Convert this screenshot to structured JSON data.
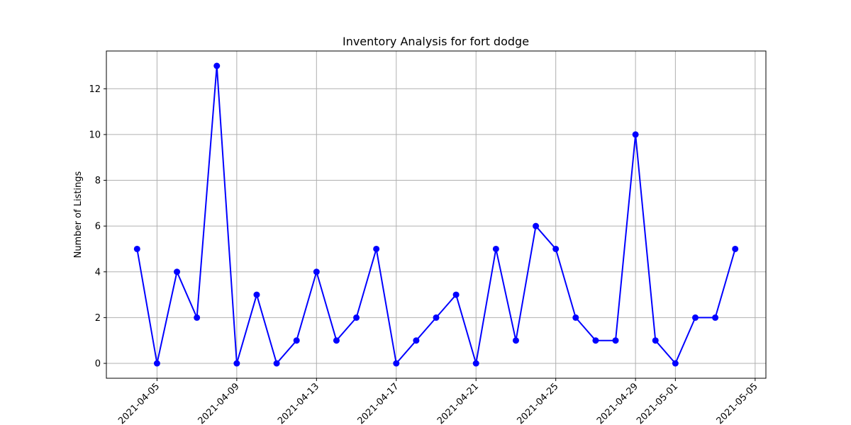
{
  "chart_data": {
    "type": "line",
    "title": "Inventory Analysis for fort dodge",
    "xlabel": "",
    "ylabel": "Number of Listings",
    "x": [
      "2021-04-04",
      "2021-04-05",
      "2021-04-06",
      "2021-04-07",
      "2021-04-08",
      "2021-04-09",
      "2021-04-10",
      "2021-04-11",
      "2021-04-12",
      "2021-04-13",
      "2021-04-14",
      "2021-04-15",
      "2021-04-16",
      "2021-04-17",
      "2021-04-18",
      "2021-04-19",
      "2021-04-20",
      "2021-04-21",
      "2021-04-22",
      "2021-04-23",
      "2021-04-24",
      "2021-04-25",
      "2021-04-26",
      "2021-04-27",
      "2021-04-28",
      "2021-04-29",
      "2021-04-30",
      "2021-05-01",
      "2021-05-02",
      "2021-05-03",
      "2021-05-04"
    ],
    "series": [
      {
        "values": [
          5,
          0,
          4,
          2,
          13,
          0,
          3,
          0,
          1,
          4,
          1,
          2,
          5,
          0,
          1,
          2,
          3,
          0,
          5,
          1,
          6,
          5,
          2,
          1,
          1,
          10,
          1,
          0,
          2,
          2,
          5
        ],
        "color": "#0000ff",
        "marker": "circle"
      }
    ],
    "xlim": [
      "2021-04-02T11:02:24",
      "2021-05-05T12:57:36"
    ],
    "ylim": [
      -0.65,
      13.65
    ],
    "xticks": [
      "2021-04-05",
      "2021-04-09",
      "2021-04-13",
      "2021-04-17",
      "2021-04-21",
      "2021-04-25",
      "2021-04-29",
      "2021-05-01",
      "2021-05-05"
    ],
    "yticks": [
      0,
      2,
      4,
      6,
      8,
      10,
      12
    ],
    "grid": true
  }
}
